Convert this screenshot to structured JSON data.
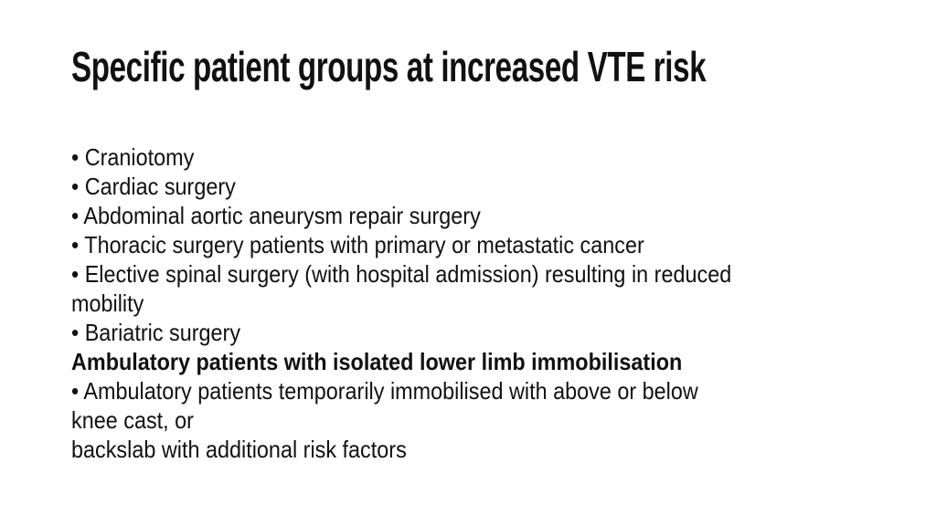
{
  "slide": {
    "title": "Specific patient groups at increased VTE risk",
    "body_lines": [
      "• Craniotomy",
      "• Cardiac surgery",
      "• Abdominal aortic aneurysm repair surgery",
      "• Thoracic surgery patients with primary or metastatic cancer",
      "• Elective spinal surgery (with hospital admission) resulting in reduced",
      "mobility",
      "• Bariatric surgery",
      "Ambulatory patients with isolated lower limb immobilisation",
      "• Ambulatory patients temporarily immobilised with above or below",
      "knee cast, or",
      "backslab with additional risk factors"
    ],
    "colors": {
      "background": "#ffffff",
      "text": "#111111"
    }
  }
}
